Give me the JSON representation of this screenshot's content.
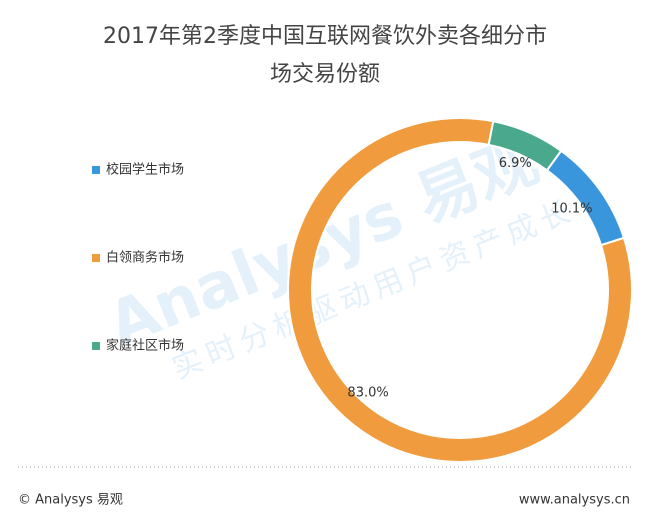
{
  "chart_data": {
    "type": "donut",
    "title": "2017年第2季度中国互联网餐饮外卖各细分市场交易份额",
    "categories": [
      "校园学生市场",
      "白领商务市场",
      "家庭社区市场"
    ],
    "values": [
      10.1,
      83.0,
      6.9
    ],
    "value_labels": [
      "10.1%",
      "83.0%",
      "6.9%"
    ],
    "colors": [
      "#3a96dc",
      "#f09c3e",
      "#4aa88c"
    ],
    "legend": "left",
    "watermark": [
      "Analysys 易观",
      "实时分析驱动用户资产成长"
    ]
  },
  "footer": {
    "left": "© Analysys 易观",
    "right": "www.analysys.cn"
  }
}
